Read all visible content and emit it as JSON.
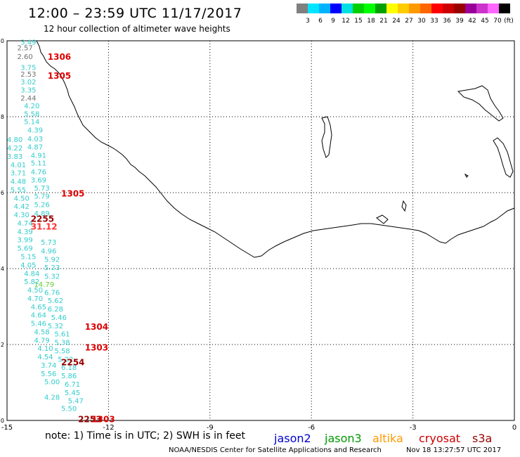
{
  "header": {
    "title": "12:00 – 23:59 UTC 11/17/2017",
    "subtitle": "12 hour collection of altimeter wave heights"
  },
  "colorbar": {
    "colors": [
      "#808080",
      "#00e5ff",
      "#00b3ff",
      "#0000ff",
      "#00e0e0",
      "#00d000",
      "#00ff00",
      "#00a000",
      "#ffff00",
      "#ffcc00",
      "#ff9900",
      "#ff6600",
      "#ff0000",
      "#cc0000",
      "#990000",
      "#990099",
      "#cc33cc",
      "#ff66ff",
      "#000000"
    ],
    "labels": [
      "3",
      "6",
      "9",
      "12",
      "15",
      "18",
      "21",
      "24",
      "27",
      "30",
      "33",
      "36",
      "39",
      "42",
      "45",
      "70"
    ],
    "unit": "(ft)"
  },
  "axes": {
    "x_ticks": [
      "-15",
      "-12",
      "-9",
      "-6",
      "-3",
      "0"
    ],
    "y_ticks": [
      "0",
      "2",
      "4",
      "6",
      "8",
      "10"
    ],
    "x_range": [
      -15,
      0
    ],
    "y_range": [
      0,
      10
    ]
  },
  "observations": [
    {
      "text": "3.49",
      "lon": -14.6,
      "lat": 9.9,
      "color": "#33cccc"
    },
    {
      "text": "2.57",
      "lon": -14.7,
      "lat": 9.75,
      "color": "#707070"
    },
    {
      "text": "2.60",
      "lon": -14.7,
      "lat": 9.52,
      "color": "#707070"
    },
    {
      "text": "3.75",
      "lon": -14.6,
      "lat": 9.23,
      "color": "#33cccc"
    },
    {
      "text": "2.53",
      "lon": -14.6,
      "lat": 9.06,
      "color": "#707070"
    },
    {
      "text": "3.02",
      "lon": -14.6,
      "lat": 8.85,
      "color": "#33cccc"
    },
    {
      "text": "3.35",
      "lon": -14.6,
      "lat": 8.64,
      "color": "#33cccc"
    },
    {
      "text": "2.44",
      "lon": -14.6,
      "lat": 8.43,
      "color": "#707070"
    },
    {
      "text": "4.20",
      "lon": -14.5,
      "lat": 8.22,
      "color": "#33cccc"
    },
    {
      "text": "5.58",
      "lon": -14.5,
      "lat": 8.01,
      "color": "#33cccc"
    },
    {
      "text": "5.14",
      "lon": -14.5,
      "lat": 7.81,
      "color": "#33cccc"
    },
    {
      "text": "4.39",
      "lon": -14.4,
      "lat": 7.58,
      "color": "#33cccc"
    },
    {
      "text": "4.03",
      "lon": -14.4,
      "lat": 7.35,
      "color": "#33cccc"
    },
    {
      "text": "4.87",
      "lon": -14.4,
      "lat": 7.14,
      "color": "#33cccc"
    },
    {
      "text": "4.91",
      "lon": -14.3,
      "lat": 6.92,
      "color": "#33cccc"
    },
    {
      "text": "5.11",
      "lon": -14.3,
      "lat": 6.71,
      "color": "#33cccc"
    },
    {
      "text": "4.76",
      "lon": -14.3,
      "lat": 6.48,
      "color": "#33cccc"
    },
    {
      "text": "3.69",
      "lon": -14.3,
      "lat": 6.27,
      "color": "#33cccc"
    },
    {
      "text": "5.73",
      "lon": -14.2,
      "lat": 6.06,
      "color": "#33cccc"
    },
    {
      "text": "5.79",
      "lon": -14.2,
      "lat": 5.84,
      "color": "#33cccc"
    },
    {
      "text": "5.26",
      "lon": -14.2,
      "lat": 5.62,
      "color": "#33cccc"
    },
    {
      "text": "4.89",
      "lon": -14.2,
      "lat": 5.39,
      "color": "#33cccc"
    },
    {
      "text": "5.73",
      "lon": -14.0,
      "lat": 4.63,
      "color": "#33cccc"
    },
    {
      "text": "4.96",
      "lon": -14.0,
      "lat": 4.4,
      "color": "#33cccc"
    },
    {
      "text": "5.92",
      "lon": -13.9,
      "lat": 4.18,
      "color": "#33cccc"
    },
    {
      "text": "5.23",
      "lon": -13.9,
      "lat": 3.96,
      "color": "#33cccc"
    },
    {
      "text": "5.32",
      "lon": -13.9,
      "lat": 3.73,
      "color": "#33cccc"
    },
    {
      "text": "14.79",
      "lon": -14.2,
      "lat": 3.52,
      "color": "#66cc33"
    },
    {
      "text": "6.76",
      "lon": -13.9,
      "lat": 3.31,
      "color": "#33cccc"
    },
    {
      "text": "5.62",
      "lon": -13.8,
      "lat": 3.09,
      "color": "#33cccc"
    },
    {
      "text": "6.28",
      "lon": -13.8,
      "lat": 2.87,
      "color": "#33cccc"
    },
    {
      "text": "5.46",
      "lon": -13.7,
      "lat": 2.65,
      "color": "#33cccc"
    },
    {
      "text": "5.32",
      "lon": -13.8,
      "lat": 2.43,
      "color": "#33cccc"
    },
    {
      "text": "5.61",
      "lon": -13.6,
      "lat": 2.21,
      "color": "#33cccc"
    },
    {
      "text": "5.38",
      "lon": -13.6,
      "lat": 1.99,
      "color": "#33cccc"
    },
    {
      "text": "5.58",
      "lon": -13.6,
      "lat": 1.77,
      "color": "#33cccc"
    },
    {
      "text": "5.22",
      "lon": -13.5,
      "lat": 1.55,
      "color": "#33cccc"
    },
    {
      "text": "6.18",
      "lon": -13.4,
      "lat": 1.33,
      "color": "#33cccc"
    },
    {
      "text": "5.86",
      "lon": -13.4,
      "lat": 1.11,
      "color": "#33cccc"
    },
    {
      "text": "6.71",
      "lon": -13.3,
      "lat": 0.89,
      "color": "#33cccc"
    },
    {
      "text": "5.45",
      "lon": -13.3,
      "lat": 0.67,
      "color": "#33cccc"
    },
    {
      "text": "5.47",
      "lon": -13.2,
      "lat": 0.45,
      "color": "#33cccc"
    },
    {
      "text": "5.50",
      "lon": -13.4,
      "lat": 0.25,
      "color": "#33cccc"
    },
    {
      "text": "4.80",
      "lon": -15.0,
      "lat": 7.33,
      "color": "#33cccc"
    },
    {
      "text": "4.22",
      "lon": -15.0,
      "lat": 7.11,
      "color": "#33cccc"
    },
    {
      "text": "3.83",
      "lon": -15.0,
      "lat": 6.89,
      "color": "#33cccc"
    },
    {
      "text": "4.01",
      "lon": -14.9,
      "lat": 6.67,
      "color": "#33cccc"
    },
    {
      "text": "3.71",
      "lon": -14.9,
      "lat": 6.45,
      "color": "#33cccc"
    },
    {
      "text": "4.48",
      "lon": -14.9,
      "lat": 6.23,
      "color": "#33cccc"
    },
    {
      "text": "5.55",
      "lon": -14.9,
      "lat": 6.01,
      "color": "#33cccc"
    },
    {
      "text": "4.50",
      "lon": -14.8,
      "lat": 5.79,
      "color": "#33cccc"
    },
    {
      "text": "4.42",
      "lon": -14.8,
      "lat": 5.57,
      "color": "#33cccc"
    },
    {
      "text": "4.30",
      "lon": -14.8,
      "lat": 5.35,
      "color": "#33cccc"
    },
    {
      "text": "4.74",
      "lon": -14.7,
      "lat": 5.13,
      "color": "#33cccc"
    },
    {
      "text": "4.39",
      "lon": -14.7,
      "lat": 4.91,
      "color": "#33cccc"
    },
    {
      "text": "3.99",
      "lon": -14.7,
      "lat": 4.69,
      "color": "#33cccc"
    },
    {
      "text": "5.69",
      "lon": -14.7,
      "lat": 4.47,
      "color": "#33cccc"
    },
    {
      "text": "5.15",
      "lon": -14.6,
      "lat": 4.25,
      "color": "#33cccc"
    },
    {
      "text": "4.05",
      "lon": -14.6,
      "lat": 4.03,
      "color": "#33cccc"
    },
    {
      "text": "4.84",
      "lon": -14.5,
      "lat": 3.81,
      "color": "#33cccc"
    },
    {
      "text": "5.82",
      "lon": -14.5,
      "lat": 3.59,
      "color": "#33cccc"
    },
    {
      "text": "4.50",
      "lon": -14.4,
      "lat": 3.37,
      "color": "#33cccc"
    },
    {
      "text": "4.70",
      "lon": -14.4,
      "lat": 3.15,
      "color": "#33cccc"
    },
    {
      "text": "4.65",
      "lon": -14.3,
      "lat": 2.93,
      "color": "#33cccc"
    },
    {
      "text": "4.64",
      "lon": -14.3,
      "lat": 2.71,
      "color": "#33cccc"
    },
    {
      "text": "5.46",
      "lon": -14.3,
      "lat": 2.49,
      "color": "#33cccc"
    },
    {
      "text": "4.58",
      "lon": -14.2,
      "lat": 2.27,
      "color": "#33cccc"
    },
    {
      "text": "4.79",
      "lon": -14.2,
      "lat": 2.05,
      "color": "#33cccc"
    },
    {
      "text": "4.10",
      "lon": -14.1,
      "lat": 1.83,
      "color": "#33cccc"
    },
    {
      "text": "4.54",
      "lon": -14.1,
      "lat": 1.61,
      "color": "#33cccc"
    },
    {
      "text": "3.74",
      "lon": -14.0,
      "lat": 1.39,
      "color": "#33cccc"
    },
    {
      "text": "5.56",
      "lon": -14.0,
      "lat": 1.17,
      "color": "#33cccc"
    },
    {
      "text": "5.00",
      "lon": -13.9,
      "lat": 0.95,
      "color": "#33cccc"
    },
    {
      "text": "4.28",
      "lon": -13.9,
      "lat": 0.55,
      "color": "#33cccc"
    }
  ],
  "pass_times": [
    {
      "text": "1306",
      "lon": -13.8,
      "lat": 9.5,
      "color": "#dd0000"
    },
    {
      "text": "1305",
      "lon": -13.8,
      "lat": 9.0,
      "color": "#dd0000"
    },
    {
      "text": "1305",
      "lon": -13.4,
      "lat": 5.9,
      "color": "#dd0000"
    },
    {
      "text": "2255",
      "lon": -14.3,
      "lat": 5.23,
      "color": "#990000"
    },
    {
      "text": "31.12",
      "lon": -14.3,
      "lat": 5.03,
      "color": "#ff3333"
    },
    {
      "text": "1304",
      "lon": -12.7,
      "lat": 2.39,
      "color": "#dd0000"
    },
    {
      "text": "1303",
      "lon": -12.7,
      "lat": 1.84,
      "color": "#dd0000"
    },
    {
      "text": "2254",
      "lon": -13.4,
      "lat": 1.45,
      "color": "#990000"
    },
    {
      "text": "2253",
      "lon": -12.9,
      "lat": -0.05,
      "color": "#990000"
    },
    {
      "text": "1303",
      "lon": -12.5,
      "lat": -0.05,
      "color": "#dd0000"
    }
  ],
  "footer": {
    "note": "note:  1) Time is in UTC; 2) SWH is in feet",
    "credit": "NOAA/NESDIS Center for Satellite Applications and Research",
    "timestamp": "Nov 18 13:27:57 UTC 2017"
  },
  "satellites": [
    {
      "name": "jason2",
      "color": "#0000cc"
    },
    {
      "name": "jason3",
      "color": "#009900"
    },
    {
      "name": "altika",
      "color": "#ff9900"
    },
    {
      "name": "cryosat",
      "color": "#cc0000"
    },
    {
      "name": "s3a",
      "color": "#990000"
    }
  ]
}
